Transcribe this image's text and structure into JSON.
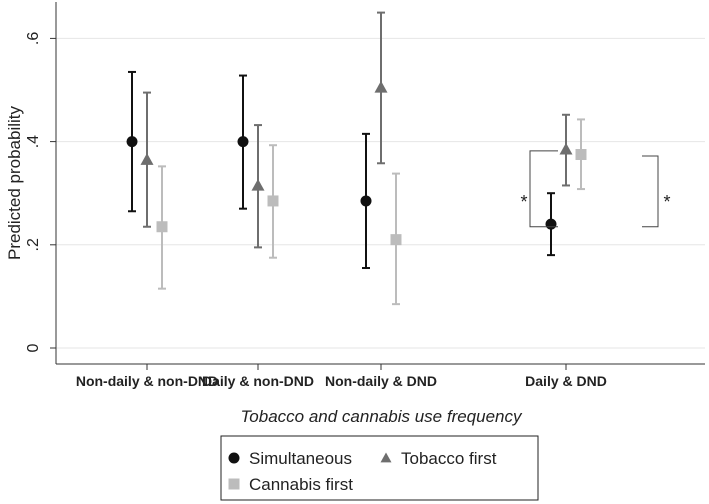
{
  "chart_data": {
    "type": "scatter",
    "title": "",
    "xlabel": "Tobacco and cannabis use frequency",
    "ylabel": "Predicted probability",
    "ylim": [
      0,
      0.65
    ],
    "yticks": [
      {
        "value": 0,
        "label": "0"
      },
      {
        "value": 0.2,
        "label": ".2"
      },
      {
        "value": 0.4,
        "label": ".4"
      },
      {
        "value": 0.6,
        "label": ".6"
      }
    ],
    "grid": true,
    "categories": [
      "Non-daily & non-DND",
      "Daily & non-DND",
      "Non-daily & DND",
      "Daily & DND"
    ],
    "series": [
      {
        "name": "Simultaneous",
        "marker": "circle",
        "color": "#111111",
        "values": [
          0.4,
          0.4,
          0.285,
          0.24
        ],
        "ci_low": [
          0.265,
          0.27,
          0.155,
          0.18
        ],
        "ci_high": [
          0.535,
          0.528,
          0.415,
          0.3
        ]
      },
      {
        "name": "Tobacco first",
        "marker": "triangle",
        "color": "#6e6e6e",
        "values": [
          0.365,
          0.315,
          0.505,
          0.385
        ],
        "ci_low": [
          0.235,
          0.195,
          0.358,
          0.315
        ],
        "ci_high": [
          0.495,
          0.432,
          0.65,
          0.452
        ]
      },
      {
        "name": "Cannabis first",
        "marker": "square",
        "color": "#bcbcbc",
        "values": [
          0.235,
          0.285,
          0.21,
          0.375
        ],
        "ci_low": [
          0.115,
          0.175,
          0.085,
          0.308
        ],
        "ci_high": [
          0.352,
          0.393,
          0.338,
          0.443
        ]
      }
    ],
    "annotations": [
      {
        "text": "*",
        "category": "Daily & DND",
        "between": [
          "Simultaneous",
          "Tobacco first"
        ]
      },
      {
        "text": "*",
        "category": "Daily & DND",
        "between": [
          "Simultaneous",
          "Cannabis first"
        ]
      }
    ],
    "legend": {
      "placement": "bottom",
      "entries": [
        "Simultaneous",
        "Tobacco first",
        "Cannabis first"
      ]
    }
  }
}
